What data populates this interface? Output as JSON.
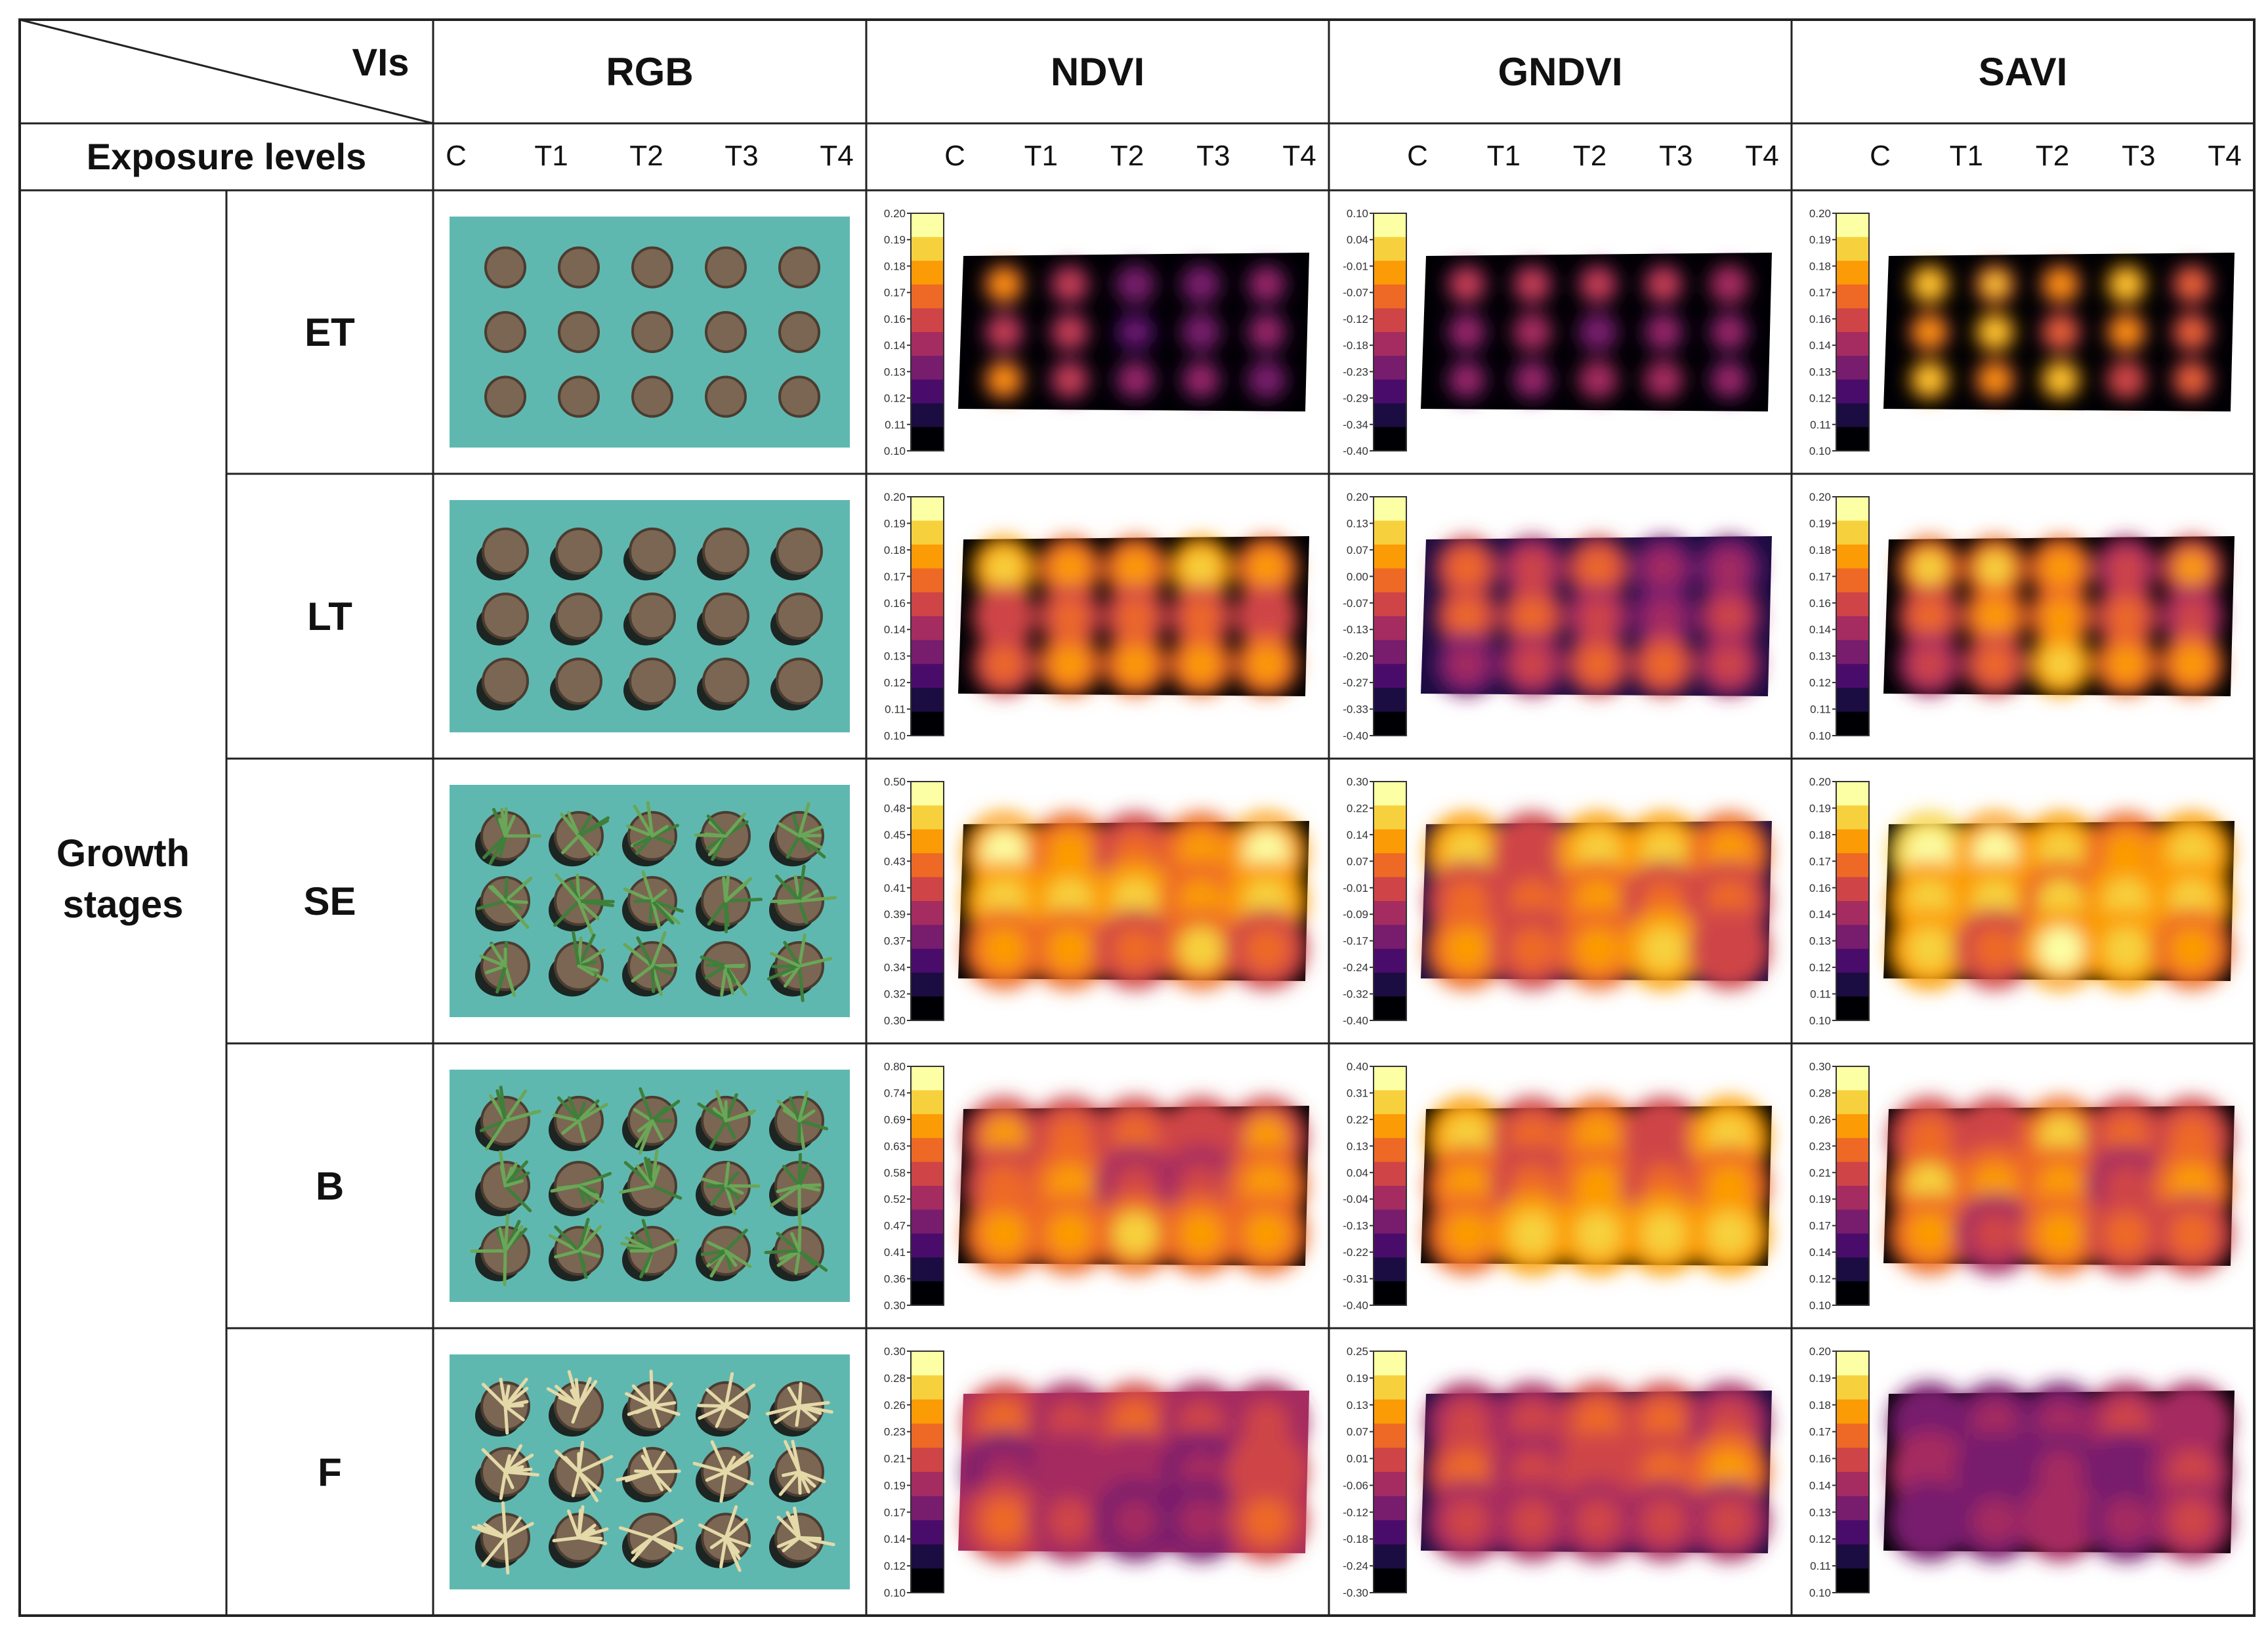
{
  "table": {
    "corner_top": "VIs",
    "corner_bottom": "Exposure levels",
    "row_group_label": "Growth stages",
    "columns": [
      "RGB",
      "NDVI",
      "GNDVI",
      "SAVI"
    ],
    "exposure_levels": [
      "C",
      "T1",
      "T2",
      "T3",
      "T4"
    ],
    "stages": [
      "ET",
      "LT",
      "SE",
      "B",
      "F"
    ]
  },
  "colorbars": {
    "NDVI": [
      [
        "0.20",
        "0.19",
        "0.18",
        "0.17",
        "0.16",
        "0.14",
        "0.13",
        "0.12",
        "0.11",
        "0.10"
      ],
      [
        "0.20",
        "0.19",
        "0.18",
        "0.17",
        "0.16",
        "0.14",
        "0.13",
        "0.12",
        "0.11",
        "0.10"
      ],
      [
        "0.50",
        "0.48",
        "0.45",
        "0.43",
        "0.41",
        "0.39",
        "0.37",
        "0.34",
        "0.32",
        "0.30"
      ],
      [
        "0.80",
        "0.74",
        "0.69",
        "0.63",
        "0.58",
        "0.52",
        "0.47",
        "0.41",
        "0.36",
        "0.30"
      ],
      [
        "0.30",
        "0.28",
        "0.26",
        "0.23",
        "0.21",
        "0.19",
        "0.17",
        "0.14",
        "0.12",
        "0.10"
      ]
    ],
    "GNDVI": [
      [
        "0.10",
        "0.04",
        "-0.01",
        "-0.07",
        "-0.12",
        "-0.18",
        "-0.23",
        "-0.29",
        "-0.34",
        "-0.40"
      ],
      [
        "0.20",
        "0.13",
        "0.07",
        "0.00",
        "-0.07",
        "-0.13",
        "-0.20",
        "-0.27",
        "-0.33",
        "-0.40"
      ],
      [
        "0.30",
        "0.22",
        "0.14",
        "0.07",
        "-0.01",
        "-0.09",
        "-0.17",
        "-0.24",
        "-0.32",
        "-0.40"
      ],
      [
        "0.40",
        "0.31",
        "0.22",
        "0.13",
        "0.04",
        "-0.04",
        "-0.13",
        "-0.22",
        "-0.31",
        "-0.40"
      ],
      [
        "0.25",
        "0.19",
        "0.13",
        "0.07",
        "0.01",
        "-0.06",
        "-0.12",
        "-0.18",
        "-0.24",
        "-0.30"
      ]
    ],
    "SAVI": [
      [
        "0.20",
        "0.19",
        "0.18",
        "0.17",
        "0.16",
        "0.14",
        "0.13",
        "0.12",
        "0.11",
        "0.10"
      ],
      [
        "0.20",
        "0.19",
        "0.18",
        "0.17",
        "0.16",
        "0.14",
        "0.13",
        "0.12",
        "0.11",
        "0.10"
      ],
      [
        "0.20",
        "0.19",
        "0.18",
        "0.17",
        "0.16",
        "0.14",
        "0.13",
        "0.12",
        "0.11",
        "0.10"
      ],
      [
        "0.30",
        "0.28",
        "0.26",
        "0.23",
        "0.21",
        "0.19",
        "0.17",
        "0.14",
        "0.12",
        "0.10"
      ],
      [
        "0.20",
        "0.19",
        "0.18",
        "0.17",
        "0.16",
        "0.14",
        "0.13",
        "0.12",
        "0.11",
        "0.10"
      ]
    ]
  },
  "colors": {
    "rgb_background": "#5fb8b0",
    "pot": "#7a6652",
    "colormap": [
      "#000004",
      "#1b0c41",
      "#4a0c6b",
      "#781c6d",
      "#a52c60",
      "#cf4446",
      "#ed6925",
      "#fb9b06",
      "#f7d13d",
      "#fcffa4"
    ]
  }
}
